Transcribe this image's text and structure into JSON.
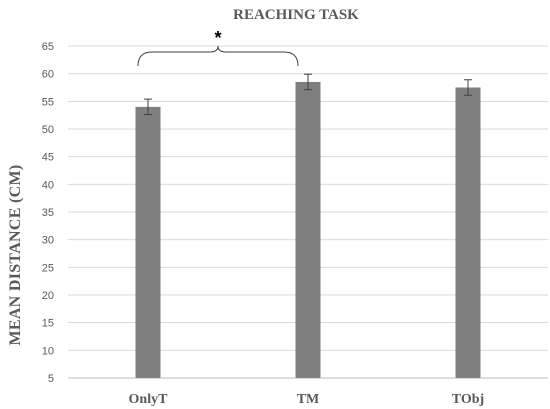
{
  "chart_data": {
    "type": "bar",
    "title": "REACHING TASK",
    "xlabel": "",
    "ylabel": "MEAN DISTANCE (CM)",
    "categories": [
      "OnlyT",
      "TM",
      "TObj"
    ],
    "values": [
      54,
      58.5,
      57.5
    ],
    "error": [
      1.4,
      1.4,
      1.4
    ],
    "ylim": [
      5,
      65
    ],
    "yticks": [
      5,
      10,
      15,
      20,
      25,
      30,
      35,
      40,
      45,
      50,
      55,
      60,
      65
    ],
    "grid": true,
    "legend": "none",
    "bar_color": "#7f7f7f",
    "annotation": {
      "text": "*",
      "type": "significance-bracket",
      "from": "OnlyT",
      "to": "TM"
    }
  }
}
